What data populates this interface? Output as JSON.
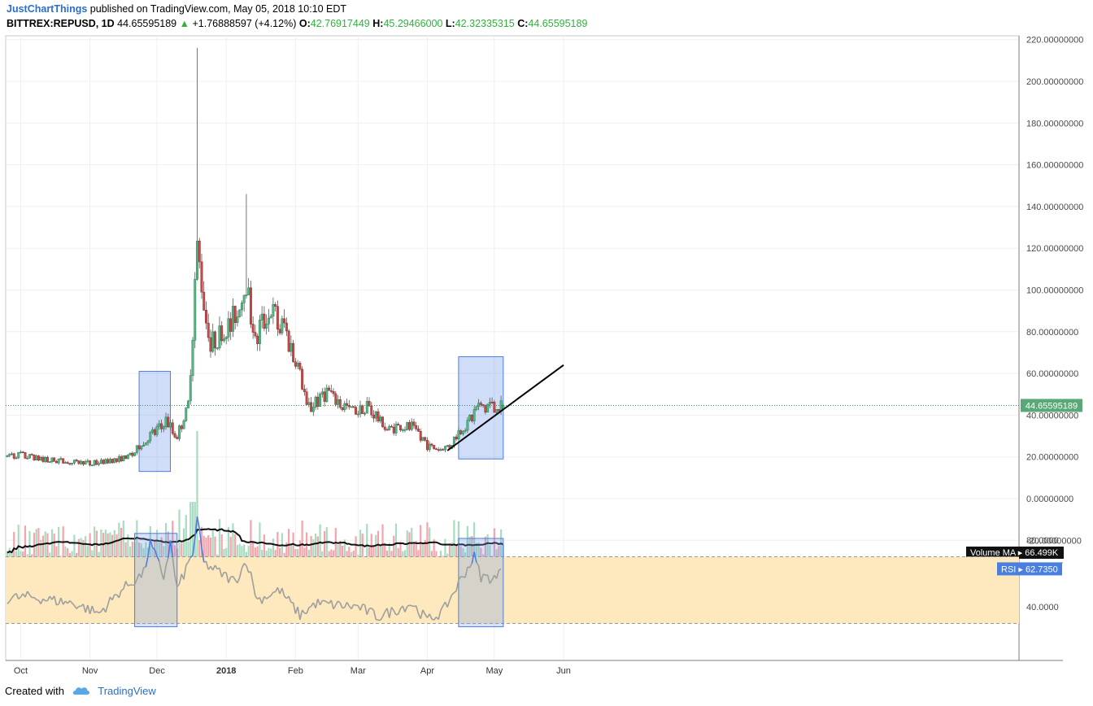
{
  "header": {
    "author": "JustChartThings",
    "published": "published on TradingView.com, May 05, 2018 10:10 EDT",
    "symbol": "BITTREX:REPUSD, 1D",
    "last": "44.65595189",
    "change": "+1.76888597 (+4.12%)",
    "o_label": "O:",
    "o": "42.76917449",
    "h_label": "H:",
    "h": "45.29466000",
    "l_label": "L:",
    "l": "42.32335315",
    "c_label": "C:",
    "c": "44.65595189"
  },
  "footer": {
    "created": "Created with",
    "brand": "TradingView"
  },
  "colors": {
    "up": "#2eb33b",
    "upFill": "#53b987",
    "down": "#8f2a2a",
    "downFill": "#c84b4b",
    "volUp": "#a8dcc0",
    "volDown": "#f4a4aa",
    "accent": "#2a6fc9",
    "rsiLine": "#9e9e9e",
    "rsiBand": "#fde9bd",
    "box": "#4a7fe0"
  },
  "chart_data": [
    {
      "type": "candlestick",
      "symbol": "BITTREX:REPUSD",
      "interval": "1D",
      "y_ticks": [
        "220.00000000",
        "200.00000000",
        "180.00000000",
        "160.00000000",
        "140.00000000",
        "120.00000000",
        "100.00000000",
        "80.00000000",
        "60.00000000",
        "40.00000000",
        "20.00000000",
        "0.00000000",
        "-20.00000000"
      ],
      "ylim": [
        -20,
        220
      ],
      "x_ticks": [
        "Oct",
        "Nov",
        "Dec",
        "2018",
        "Feb",
        "Mar",
        "Apr",
        "May",
        "Jun"
      ],
      "last_price_label": "44.65595189",
      "close_series": [
        {
          "date": "2017-09-25",
          "close": 20
        },
        {
          "date": "2017-10-01",
          "close": 21
        },
        {
          "date": "2017-10-10",
          "close": 19
        },
        {
          "date": "2017-10-20",
          "close": 18
        },
        {
          "date": "2017-11-01",
          "close": 17
        },
        {
          "date": "2017-11-10",
          "close": 18
        },
        {
          "date": "2017-11-18",
          "close": 20
        },
        {
          "date": "2017-11-25",
          "close": 27
        },
        {
          "date": "2017-12-05",
          "close": 37
        },
        {
          "date": "2017-12-10",
          "close": 30
        },
        {
          "date": "2017-12-15",
          "close": 44
        },
        {
          "date": "2017-12-19",
          "close": 117
        },
        {
          "date": "2017-12-25",
          "close": 75
        },
        {
          "date": "2018-01-01",
          "close": 80
        },
        {
          "date": "2018-01-06",
          "close": 92
        },
        {
          "date": "2018-01-10",
          "close": 104
        },
        {
          "date": "2018-01-14",
          "close": 75
        },
        {
          "date": "2018-01-20",
          "close": 92
        },
        {
          "date": "2018-01-27",
          "close": 80
        },
        {
          "date": "2018-02-03",
          "close": 60
        },
        {
          "date": "2018-02-06",
          "close": 43
        },
        {
          "date": "2018-02-15",
          "close": 50
        },
        {
          "date": "2018-02-25",
          "close": 42
        },
        {
          "date": "2018-03-05",
          "close": 44
        },
        {
          "date": "2018-03-15",
          "close": 33
        },
        {
          "date": "2018-03-25",
          "close": 35
        },
        {
          "date": "2018-04-01",
          "close": 25
        },
        {
          "date": "2018-04-10",
          "close": 24
        },
        {
          "date": "2018-04-18",
          "close": 35
        },
        {
          "date": "2018-04-24",
          "close": 43
        },
        {
          "date": "2018-05-05",
          "close": 44.66
        }
      ],
      "peaks": [
        {
          "date": "2017-12-19",
          "high": 216
        },
        {
          "date": "2018-01-10",
          "high": 146
        }
      ],
      "annotations": [
        "highlight box Nov 23 - Dec 7, 13 to 61",
        "highlight box Apr 15 - May 5, 19 to 68",
        "trendline from 23 (Apr 10) to 64 (Jun 1)"
      ]
    },
    {
      "type": "bar",
      "series": [
        {
          "name": "Volume"
        }
      ],
      "ma_label": "Volume MA",
      "ma_value": "66.499K"
    },
    {
      "type": "line",
      "series": [
        {
          "name": "RSI"
        }
      ],
      "y_ticks": [
        "80.0000",
        "40.0000"
      ],
      "band": [
        30,
        70
      ],
      "current_label": "62.7350",
      "points": [
        {
          "date": "2017-09-25",
          "v": 45
        },
        {
          "date": "2017-10-05",
          "v": 46
        },
        {
          "date": "2017-10-25",
          "v": 42
        },
        {
          "date": "2017-11-05",
          "v": 36
        },
        {
          "date": "2017-11-15",
          "v": 50
        },
        {
          "date": "2017-11-25",
          "v": 60
        },
        {
          "date": "2017-11-28",
          "v": 78
        },
        {
          "date": "2017-12-04",
          "v": 58
        },
        {
          "date": "2017-12-07",
          "v": 78
        },
        {
          "date": "2017-12-10",
          "v": 50
        },
        {
          "date": "2017-12-17",
          "v": 72
        },
        {
          "date": "2017-12-19",
          "v": 92
        },
        {
          "date": "2017-12-22",
          "v": 66
        },
        {
          "date": "2018-01-05",
          "v": 55
        },
        {
          "date": "2018-01-10",
          "v": 68
        },
        {
          "date": "2018-01-15",
          "v": 44
        },
        {
          "date": "2018-01-25",
          "v": 50
        },
        {
          "date": "2018-02-03",
          "v": 35
        },
        {
          "date": "2018-02-10",
          "v": 42
        },
        {
          "date": "2018-03-01",
          "v": 40
        },
        {
          "date": "2018-03-10",
          "v": 34
        },
        {
          "date": "2018-03-25",
          "v": 42
        },
        {
          "date": "2018-04-01",
          "v": 32
        },
        {
          "date": "2018-04-08",
          "v": 37
        },
        {
          "date": "2018-04-15",
          "v": 54
        },
        {
          "date": "2018-04-22",
          "v": 70
        },
        {
          "date": "2018-04-25",
          "v": 58
        },
        {
          "date": "2018-05-02",
          "v": 57
        },
        {
          "date": "2018-05-05",
          "v": 62.7
        }
      ]
    }
  ]
}
